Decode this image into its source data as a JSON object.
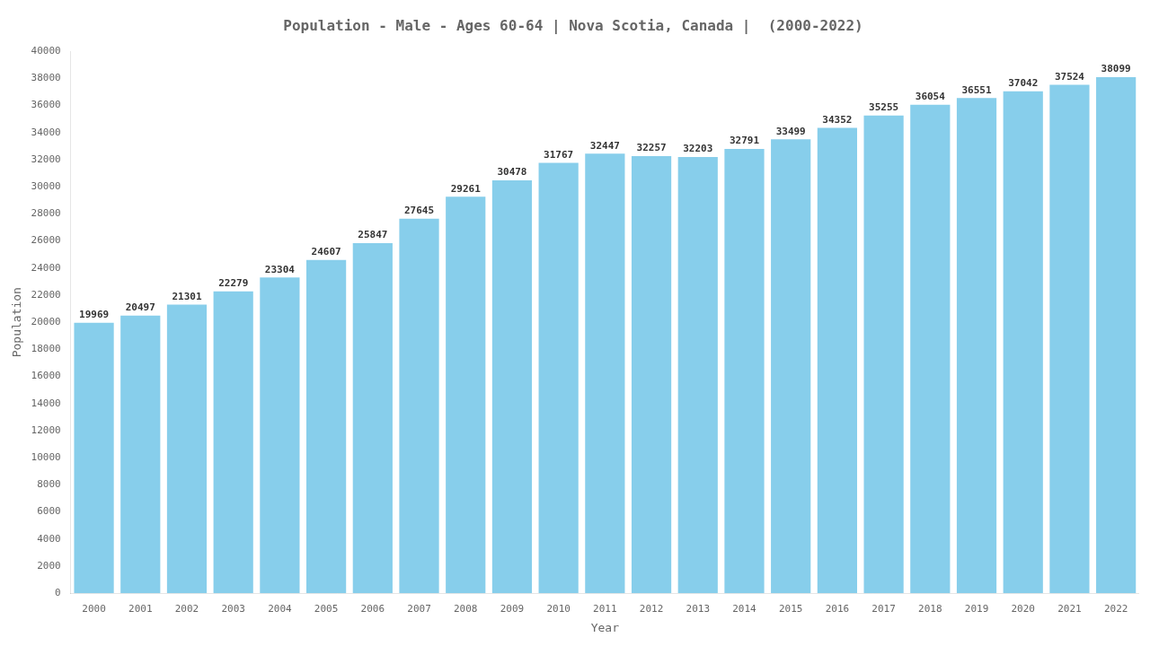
{
  "chart_data": {
    "type": "bar",
    "title": "Population - Male - Ages 60-64 | Nova Scotia, Canada |  (2000-2022)",
    "xlabel": "Year",
    "ylabel": "Population",
    "categories": [
      "2000",
      "2001",
      "2002",
      "2003",
      "2004",
      "2005",
      "2006",
      "2007",
      "2008",
      "2009",
      "2010",
      "2011",
      "2012",
      "2013",
      "2014",
      "2015",
      "2016",
      "2017",
      "2018",
      "2019",
      "2020",
      "2021",
      "2022"
    ],
    "values": [
      19969,
      20497,
      21301,
      22279,
      23304,
      24607,
      25847,
      27645,
      29261,
      30478,
      31767,
      32447,
      32257,
      32203,
      32791,
      33499,
      34352,
      35255,
      36054,
      36551,
      37042,
      37524,
      38099
    ],
    "color": "#87ceeb",
    "ylim": [
      0,
      40000
    ],
    "yticks": [
      0,
      2000,
      4000,
      6000,
      8000,
      10000,
      12000,
      14000,
      16000,
      18000,
      20000,
      22000,
      24000,
      26000,
      28000,
      30000,
      32000,
      34000,
      36000,
      38000,
      40000
    ],
    "grid": false,
    "data_labels": true
  }
}
